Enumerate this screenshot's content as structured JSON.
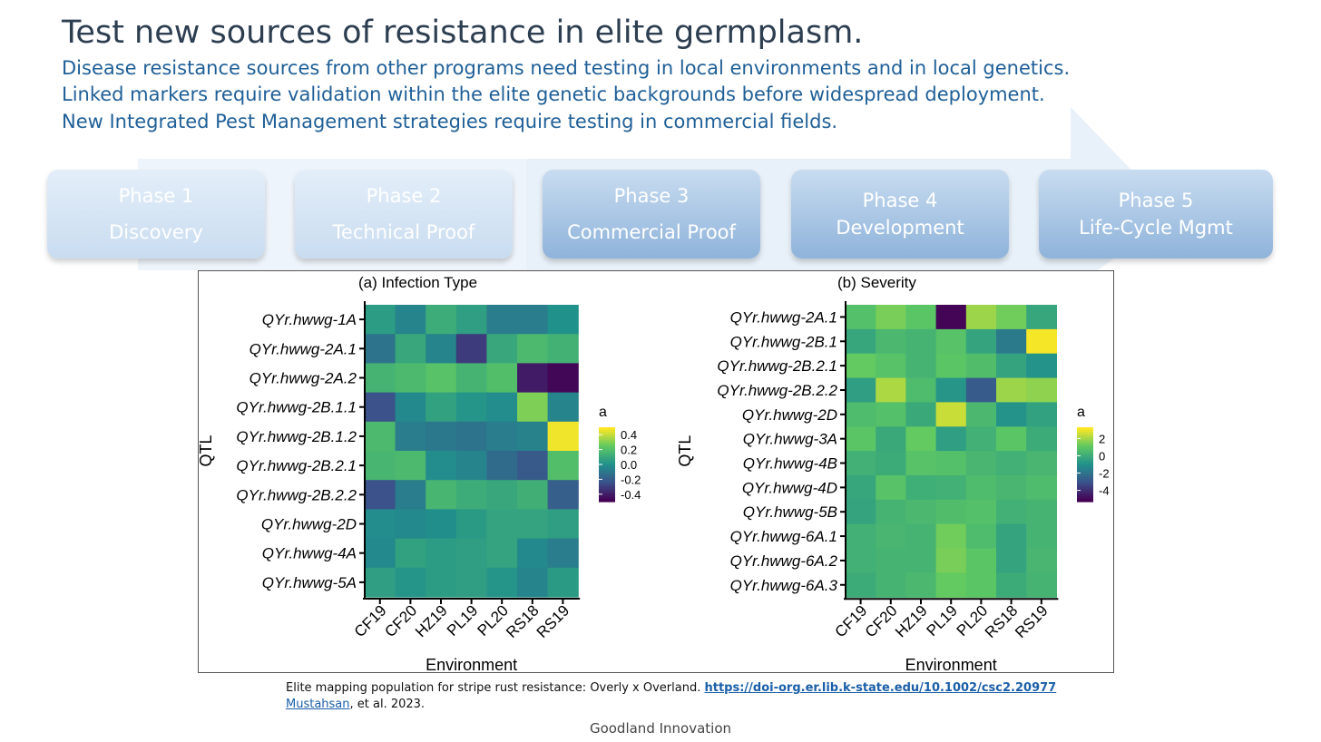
{
  "slide": {
    "title": "Test new sources of resistance in elite germplasm.",
    "bullets": [
      "Disease resistance sources from other programs need testing in local environments and in local genetics.",
      "Linked markers require validation within the elite genetic backgrounds before widespread deployment.",
      "New Integrated Pest Management strategies require testing in commercial fields."
    ],
    "phases": [
      {
        "line1": "Phase 1",
        "line2": "Discovery"
      },
      {
        "line1": "Phase 2",
        "line2": "Technical Proof"
      },
      {
        "line1": "Phase 3",
        "line2": "Commercial Proof"
      },
      {
        "line1": "Phase 4",
        "line2": "Development"
      },
      {
        "line1": "Phase 5",
        "line2": "Life-Cycle Mgmt"
      }
    ],
    "caption_text": "Elite mapping population for stripe rust resistance: Overly x Overland.",
    "caption_link": "https://doi-org.er.lib.k-state.edu/10.1002/csc2.20977",
    "caption_author": "Mustahsan",
    "caption_rest": ", et al. 2023.",
    "footer": "Goodland Innovation"
  },
  "chart_data": [
    {
      "type": "heatmap",
      "title": "(a)  Infection Type",
      "xlabel": "Environment",
      "ylabel": "QTL",
      "x": [
        "CF19",
        "CF20",
        "HZ19",
        "PL19",
        "PL20",
        "RS18",
        "RS19"
      ],
      "y": [
        "QYr.hwwg-1A",
        "QYr.hwwg-2A.1",
        "QYr.hwwg-2A.2",
        "QYr.hwwg-2B.1.1",
        "QYr.hwwg-2B.1.2",
        "QYr.hwwg-2B.2.1",
        "QYr.hwwg-2B.2.2",
        "QYr.hwwg-2D",
        "QYr.hwwg-4A",
        "QYr.hwwg-5A"
      ],
      "values": [
        [
          0.05,
          -0.05,
          0.12,
          0.06,
          -0.08,
          -0.08,
          0.0
        ],
        [
          -0.12,
          0.1,
          -0.05,
          -0.32,
          0.1,
          0.18,
          0.14
        ],
        [
          0.15,
          0.18,
          0.22,
          0.15,
          0.2,
          -0.42,
          -0.48
        ],
        [
          -0.25,
          -0.03,
          0.07,
          0.02,
          -0.02,
          0.3,
          -0.05
        ],
        [
          0.18,
          -0.08,
          -0.1,
          -0.12,
          -0.08,
          -0.06,
          0.48
        ],
        [
          0.16,
          0.18,
          -0.02,
          -0.05,
          -0.15,
          -0.22,
          0.2
        ],
        [
          -0.25,
          -0.08,
          0.16,
          0.12,
          0.1,
          0.13,
          -0.2
        ],
        [
          -0.02,
          -0.03,
          -0.01,
          0.04,
          0.08,
          0.08,
          0.06
        ],
        [
          -0.03,
          0.07,
          0.05,
          0.06,
          0.08,
          -0.03,
          -0.08
        ],
        [
          0.06,
          0.02,
          0.05,
          0.06,
          0.02,
          -0.05,
          0.04
        ]
      ],
      "legend_title": "a",
      "legend_ticks": [
        "0.4",
        "0.2",
        "0.0",
        "-0.2",
        "-0.4"
      ],
      "range": [
        -0.5,
        0.5
      ]
    },
    {
      "type": "heatmap",
      "title": "(b)  Severity",
      "xlabel": "Environment",
      "ylabel": "QTL",
      "x": [
        "CF19",
        "CF20",
        "HZ19",
        "PL19",
        "PL20",
        "RS18",
        "RS19"
      ],
      "y": [
        "QYr.hwwg-2A.1",
        "QYr.hwwg-2B.1",
        "QYr.hwwg-2B.2.1",
        "QYr.hwwg-2B.2.2",
        "QYr.hwwg-2D",
        "QYr.hwwg-3A",
        "QYr.hwwg-4B",
        "QYr.hwwg-4D",
        "QYr.hwwg-5B",
        "QYr.hwwg-6A.1",
        "QYr.hwwg-6A.2",
        "QYr.hwwg-6A.3"
      ],
      "values": [
        [
          0.8,
          1.5,
          1.0,
          -5.2,
          2.0,
          1.4,
          -0.2
        ],
        [
          -0.2,
          0.5,
          0.3,
          0.9,
          -0.3,
          -1.8,
          3.2
        ],
        [
          1.2,
          0.9,
          0.3,
          1.0,
          0.7,
          -0.3,
          -0.9
        ],
        [
          -0.5,
          2.2,
          0.6,
          -0.8,
          -2.8,
          2.0,
          1.8
        ],
        [
          0.6,
          0.8,
          -0.1,
          2.6,
          0.5,
          -0.9,
          -0.4
        ],
        [
          1.0,
          -0.1,
          1.2,
          -0.5,
          0.2,
          1.0,
          0.0
        ],
        [
          0.2,
          0.0,
          0.9,
          0.8,
          0.4,
          0.2,
          0.4
        ],
        [
          -0.2,
          0.9,
          0.1,
          0.2,
          0.6,
          0.4,
          0.6
        ],
        [
          -0.3,
          0.3,
          0.5,
          0.7,
          0.8,
          0.2,
          0.3
        ],
        [
          0.2,
          0.4,
          0.3,
          1.4,
          0.6,
          -0.3,
          0.3
        ],
        [
          0.2,
          0.3,
          0.3,
          1.5,
          1.0,
          -0.3,
          0.4
        ],
        [
          0.0,
          0.3,
          0.5,
          1.2,
          1.0,
          0.0,
          0.3
        ]
      ],
      "legend_title": "a",
      "legend_ticks": [
        "2",
        "0",
        "-2",
        "-4"
      ],
      "range": [
        -5.3,
        3.3
      ]
    }
  ]
}
